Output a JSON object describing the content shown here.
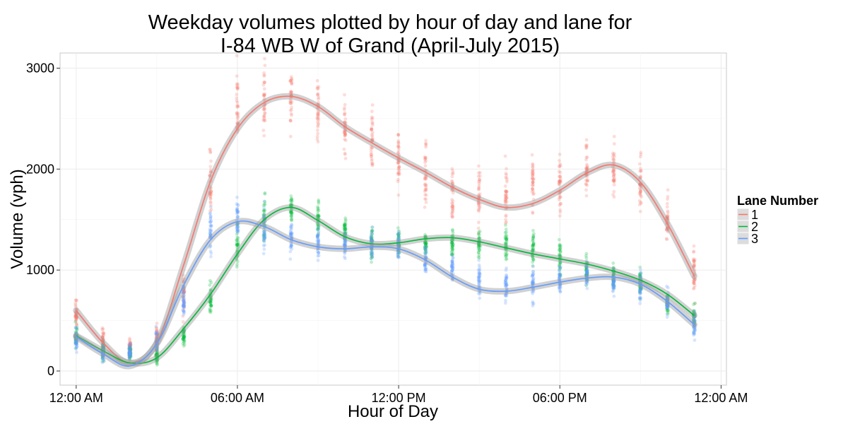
{
  "chart_data": {
    "type": "scatter",
    "title_line1": "Weekday volumes plotted by hour of day and lane for",
    "title_line2": "I-84 WB W of Grand (April-July 2015)",
    "xlabel": "Hour of Day",
    "ylabel": "Volume (vph)",
    "xlim": [
      -0.6,
      24.2
    ],
    "ylim": [
      -140,
      3150
    ],
    "x_ticks": [
      0,
      6,
      12,
      18,
      24
    ],
    "x_tick_labels": [
      "12:00 AM",
      "06:00 AM",
      "12:00 PM",
      "06:00 PM",
      "12:00 AM"
    ],
    "y_ticks": [
      0,
      1000,
      2000,
      3000
    ],
    "y_tick_labels": [
      "0",
      "1000",
      "2000",
      "3000"
    ],
    "grid": true,
    "legend": {
      "title": "Lane Number",
      "position": "right"
    },
    "series": [
      {
        "name": "1",
        "color": "#F8766D",
        "hours": [
          0,
          1,
          2,
          3,
          4,
          5,
          6,
          7,
          8,
          9,
          10,
          11,
          12,
          13,
          14,
          15,
          16,
          17,
          18,
          19,
          20,
          21,
          22,
          23
        ],
        "point_mean": [
          560,
          300,
          240,
          330,
          760,
          1850,
          2550,
          2650,
          2700,
          2550,
          2450,
          2300,
          2100,
          1950,
          1750,
          1700,
          1750,
          1850,
          1900,
          2000,
          2000,
          1850,
          1500,
          980
        ],
        "point_spread": [
          130,
          90,
          70,
          110,
          200,
          300,
          380,
          330,
          250,
          280,
          280,
          300,
          320,
          300,
          280,
          280,
          280,
          260,
          280,
          280,
          220,
          260,
          240,
          250
        ],
        "smooth_x": [
          0,
          1,
          2,
          3,
          4,
          5,
          6,
          7,
          8,
          9,
          10,
          11,
          12,
          13,
          14,
          15,
          16,
          17,
          18,
          19,
          20,
          21,
          22,
          23
        ],
        "smooth_y": [
          600,
          280,
          80,
          280,
          1050,
          1880,
          2400,
          2660,
          2720,
          2620,
          2420,
          2260,
          2110,
          1970,
          1820,
          1700,
          1620,
          1660,
          1790,
          1960,
          2040,
          1870,
          1460,
          940
        ]
      },
      {
        "name": "2",
        "color": "#00BA38",
        "hours": [
          0,
          1,
          2,
          3,
          4,
          5,
          6,
          7,
          8,
          9,
          10,
          11,
          12,
          13,
          14,
          15,
          16,
          17,
          18,
          19,
          20,
          21,
          22,
          23
        ],
        "point_mean": [
          340,
          190,
          180,
          140,
          350,
          700,
          1250,
          1500,
          1620,
          1530,
          1370,
          1280,
          1270,
          1270,
          1260,
          1250,
          1250,
          1240,
          1100,
          1000,
          940,
          870,
          680,
          540
        ],
        "point_spread": [
          110,
          80,
          60,
          70,
          90,
          120,
          220,
          220,
          130,
          150,
          130,
          140,
          120,
          120,
          120,
          140,
          150,
          160,
          150,
          130,
          120,
          140,
          110,
          100
        ],
        "smooth_x": [
          0,
          1,
          2,
          3,
          4,
          5,
          6,
          7,
          8,
          9,
          10,
          11,
          12,
          13,
          14,
          15,
          16,
          17,
          18,
          19,
          20,
          21,
          22,
          23
        ],
        "smooth_y": [
          350,
          200,
          80,
          130,
          420,
          760,
          1160,
          1500,
          1620,
          1490,
          1330,
          1260,
          1270,
          1310,
          1320,
          1280,
          1220,
          1160,
          1110,
          1060,
          990,
          900,
          760,
          550
        ]
      },
      {
        "name": "3",
        "color": "#619CFF",
        "hours": [
          0,
          1,
          2,
          3,
          4,
          5,
          6,
          7,
          8,
          9,
          10,
          11,
          12,
          13,
          14,
          15,
          16,
          17,
          18,
          19,
          20,
          21,
          22,
          23
        ],
        "point_mean": [
          300,
          180,
          200,
          300,
          700,
          1400,
          1500,
          1350,
          1300,
          1300,
          1250,
          1250,
          1250,
          1100,
          1000,
          900,
          850,
          850,
          900,
          950,
          900,
          850,
          680,
          450
        ],
        "point_spread": [
          110,
          80,
          60,
          90,
          150,
          200,
          250,
          200,
          150,
          150,
          130,
          140,
          120,
          130,
          150,
          170,
          160,
          150,
          150,
          140,
          130,
          140,
          120,
          110
        ],
        "smooth_x": [
          0,
          1,
          2,
          3,
          4,
          5,
          6,
          7,
          8,
          9,
          10,
          11,
          12,
          13,
          14,
          15,
          16,
          17,
          18,
          19,
          20,
          21,
          22,
          23
        ],
        "smooth_y": [
          340,
          170,
          50,
          270,
          850,
          1300,
          1480,
          1430,
          1300,
          1230,
          1210,
          1230,
          1210,
          1100,
          930,
          810,
          790,
          830,
          880,
          920,
          930,
          860,
          690,
          460
        ]
      }
    ]
  }
}
